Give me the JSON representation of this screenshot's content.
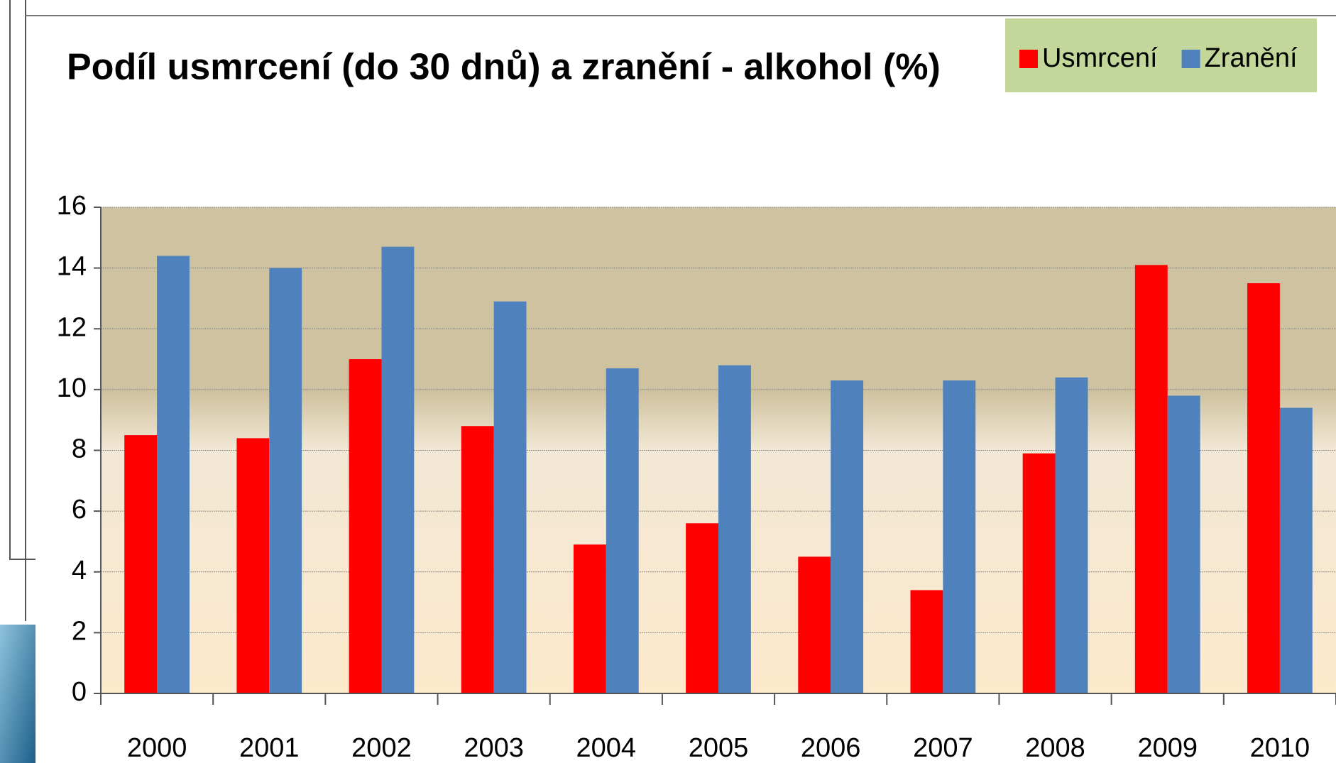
{
  "chart_data": {
    "type": "bar",
    "title": "Podíl usmrcení (do 30 dnů) a zranění - alkohol (%)",
    "categories": [
      "2000",
      "2001",
      "2002",
      "2003",
      "2004",
      "2005",
      "2006",
      "2007",
      "2008",
      "2009",
      "2010"
    ],
    "series": [
      {
        "name": "Usmrcení",
        "color": "#ff0000",
        "values": [
          8.5,
          8.4,
          11.0,
          8.8,
          4.9,
          5.6,
          4.5,
          3.4,
          7.9,
          14.1,
          13.5
        ]
      },
      {
        "name": "Zranění",
        "color": "#4f81bd",
        "values": [
          14.4,
          14.0,
          14.7,
          12.9,
          10.7,
          10.8,
          10.3,
          10.3,
          10.4,
          9.8,
          9.4
        ]
      }
    ],
    "ylim": [
      0,
      16
    ],
    "yticks": [
      0,
      2,
      4,
      6,
      8,
      10,
      12,
      14,
      16
    ],
    "grid": true,
    "legend": "top-right"
  }
}
